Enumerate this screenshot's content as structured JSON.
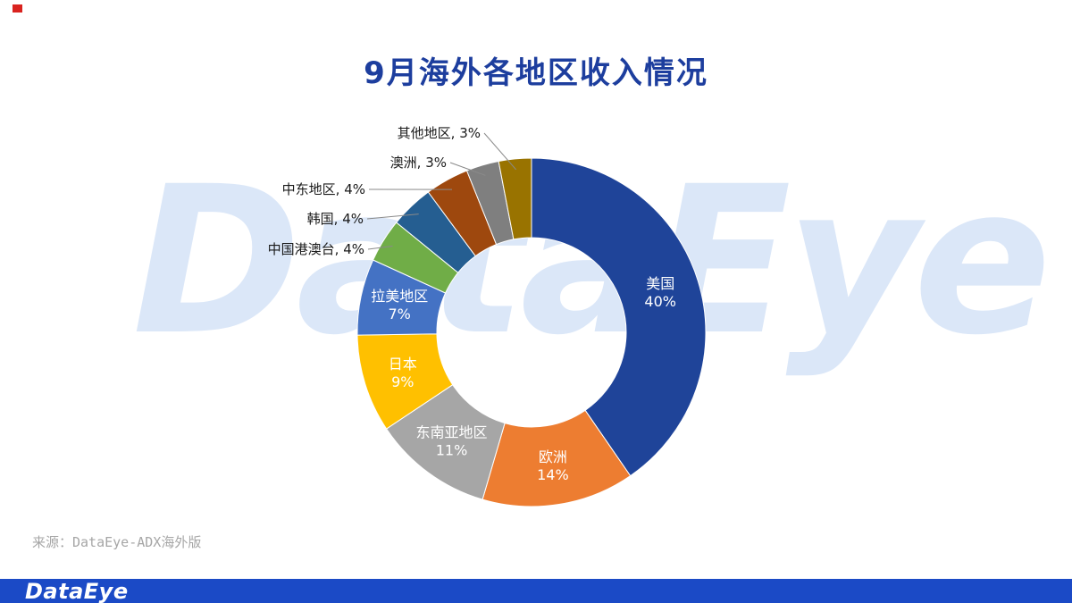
{
  "slide": {
    "title": "9月海外各地区收入情况",
    "watermark": "DataEye",
    "source": "来源：DataEye-ADX海外版",
    "footer_logo": "DataEye"
  },
  "chart_data": {
    "type": "pie",
    "subtype": "donut",
    "title": "9月海外各地区收入情况",
    "value_unit": "percent",
    "start_angle": "12 o'clock, clockwise",
    "legend": "none",
    "categories": [
      "美国",
      "欧洲",
      "东南亚地区",
      "日本",
      "拉美地区",
      "中国港澳台",
      "韩国",
      "中东地区",
      "澳洲",
      "其他地区"
    ],
    "values": [
      40,
      14,
      11,
      9,
      7,
      4,
      4,
      4,
      3,
      3
    ],
    "colors": [
      "#1f4499",
      "#ed7d31",
      "#a6a6a6",
      "#ffc000",
      "#4472c4",
      "#70ad47",
      "#255e91",
      "#9e480e",
      "#7f7f7f",
      "#997300"
    ],
    "inside_labels": [
      "美国 40%",
      "欧洲 14%",
      "东南亚地区 11%",
      "日本 9%",
      "拉美地区 7%"
    ],
    "outside_labels": [
      "中国港澳台, 4%",
      "韩国, 4%",
      "中东地区, 4%",
      "澳洲, 3%",
      "其他地区, 3%"
    ]
  }
}
